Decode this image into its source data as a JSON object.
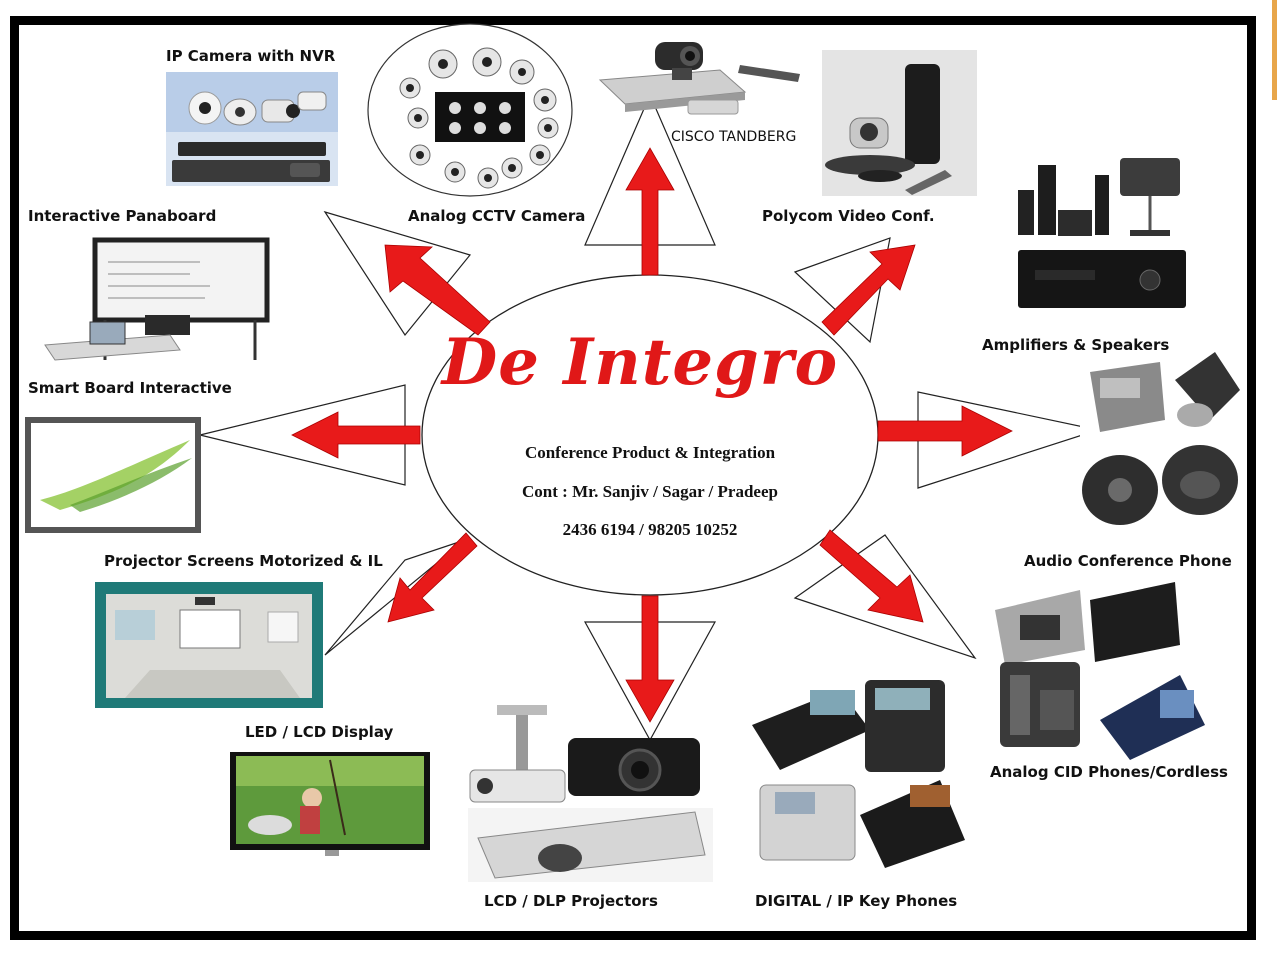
{
  "center": {
    "brand": "De Integro",
    "tagline": "Conference Product & Integration",
    "contact": "Cont : Mr. Sanjiv /  Sagar  / Pradeep",
    "phones": "2436 6194  /  98205 10252"
  },
  "products": [
    {
      "id": "ip-camera-nvr",
      "label": "IP Camera with NVR"
    },
    {
      "id": "analog-cctv",
      "label": "Analog  CCTV Camera"
    },
    {
      "id": "cisco-tandberg",
      "label": "CISCO TANDBERG"
    },
    {
      "id": "polycom",
      "label": "Polycom Video Conf."
    },
    {
      "id": "interactive-panaboard",
      "label": "Interactive Panaboard"
    },
    {
      "id": "amplifiers",
      "label": "Amplifiers & Speakers"
    },
    {
      "id": "smart-board",
      "label": "Smart Board Interactive"
    },
    {
      "id": "audio-conference",
      "label": "Audio Conference Phone"
    },
    {
      "id": "projector-screens",
      "label": "Projector  Screens  Motorized & IL"
    },
    {
      "id": "led-lcd",
      "label": "LED  /  LCD  Display"
    },
    {
      "id": "analog-cid",
      "label": "Analog CID Phones/Cordless"
    },
    {
      "id": "lcd-dlp",
      "label": "LCD  / DLP  Projectors"
    },
    {
      "id": "digital-ip",
      "label": "DIGITAL  / IP  Key Phones"
    }
  ],
  "colors": {
    "arrow": "#e81a1a",
    "brand": "#e01818",
    "frame": "#000000",
    "screen_teal": "#1f7a78"
  }
}
